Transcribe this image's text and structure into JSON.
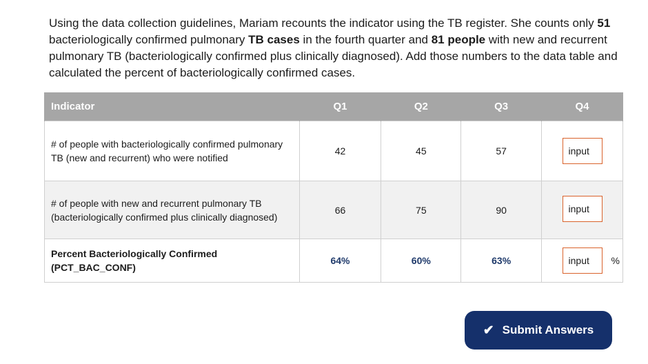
{
  "instructions": {
    "part1": "Using the data collection guidelines, Mariam recounts the indicator using the TB register. She counts only ",
    "bold1": "51",
    "part2": " bacteriologically confirmed pulmonary ",
    "bold2": "TB cases",
    "part3": " in the fourth quarter and ",
    "bold3": "81 people",
    "part4": " with new and recurrent pulmonary TB (bacteriologically confirmed plus clinically diagnosed). Add those numbers to the data table and calculated the percent of bacteriologically confirmed cases."
  },
  "table": {
    "headers": [
      "Indicator",
      "Q1",
      "Q2",
      "Q3",
      "Q4"
    ],
    "rows": [
      {
        "label": "# of people with bacteriologically confirmed pulmonary TB (new and recurrent) who were notified",
        "values": [
          "42",
          "45",
          "57"
        ],
        "input_placeholder": "input"
      },
      {
        "label": "# of people with new and recurrent pulmonary TB (bacteriologically confirmed plus clinically diagnosed)",
        "values": [
          "66",
          "75",
          "90"
        ],
        "input_placeholder": "input"
      },
      {
        "label": "Percent Bacteriologically Confirmed (PCT_BAC_CONF)",
        "values": [
          "64%",
          "60%",
          "63%"
        ],
        "input_placeholder": "input",
        "suffix": "%"
      }
    ]
  },
  "submit": {
    "icon": "check-icon",
    "label": "Submit Answers"
  },
  "colors": {
    "header_bg": "#a6a6a6",
    "input_border": "#d9622b",
    "button_bg": "#15306b",
    "percent_text": "#1f3a6b"
  }
}
